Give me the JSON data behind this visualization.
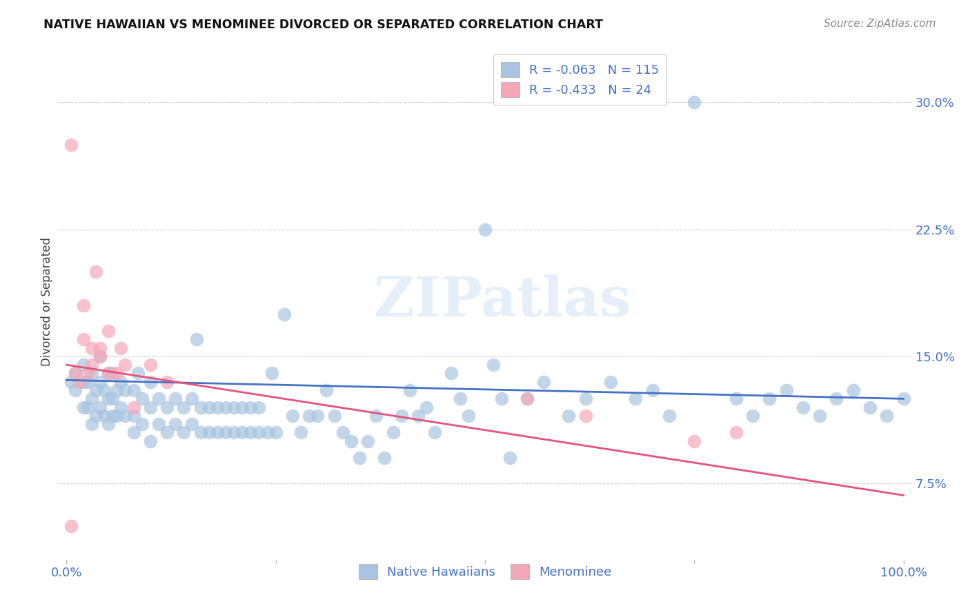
{
  "title": "NATIVE HAWAIIAN VS MENOMINEE DIVORCED OR SEPARATED CORRELATION CHART",
  "source": "Source: ZipAtlas.com",
  "ylabel": "Divorced or Separated",
  "ytick_labels": [
    "7.5%",
    "15.0%",
    "22.5%",
    "30.0%"
  ],
  "ytick_values": [
    0.075,
    0.15,
    0.225,
    0.3
  ],
  "ylim": [
    0.03,
    0.335
  ],
  "xlim": [
    -0.01,
    1.01
  ],
  "legend_r1": "-0.063",
  "legend_n1": "115",
  "legend_r2": "-0.433",
  "legend_n2": "24",
  "color_blue": "#a8c4e0",
  "color_pink": "#f4a7b9",
  "line_color_blue": "#4472c4",
  "line_color_pink": "#e8517a",
  "watermark": "ZIPatlas",
  "nh_x": [
    0.005,
    0.01,
    0.01,
    0.02,
    0.02,
    0.02,
    0.025,
    0.025,
    0.03,
    0.03,
    0.03,
    0.035,
    0.035,
    0.04,
    0.04,
    0.04,
    0.045,
    0.045,
    0.05,
    0.05,
    0.05,
    0.055,
    0.055,
    0.055,
    0.06,
    0.06,
    0.065,
    0.065,
    0.07,
    0.07,
    0.08,
    0.08,
    0.08,
    0.085,
    0.09,
    0.09,
    0.1,
    0.1,
    0.1,
    0.11,
    0.11,
    0.12,
    0.12,
    0.13,
    0.13,
    0.14,
    0.14,
    0.15,
    0.15,
    0.155,
    0.16,
    0.16,
    0.17,
    0.17,
    0.18,
    0.18,
    0.19,
    0.19,
    0.2,
    0.2,
    0.21,
    0.21,
    0.22,
    0.22,
    0.23,
    0.23,
    0.24,
    0.245,
    0.25,
    0.26,
    0.27,
    0.28,
    0.29,
    0.3,
    0.31,
    0.32,
    0.33,
    0.34,
    0.35,
    0.36,
    0.37,
    0.38,
    0.39,
    0.4,
    0.41,
    0.42,
    0.43,
    0.44,
    0.46,
    0.47,
    0.48,
    0.5,
    0.51,
    0.52,
    0.53,
    0.55,
    0.57,
    0.6,
    0.62,
    0.65,
    0.68,
    0.7,
    0.72,
    0.75,
    0.8,
    0.82,
    0.84,
    0.86,
    0.88,
    0.9,
    0.92,
    0.94,
    0.96,
    0.98,
    1.0
  ],
  "nh_y": [
    0.135,
    0.13,
    0.14,
    0.12,
    0.135,
    0.145,
    0.12,
    0.135,
    0.11,
    0.125,
    0.14,
    0.115,
    0.13,
    0.12,
    0.135,
    0.15,
    0.115,
    0.13,
    0.11,
    0.125,
    0.14,
    0.115,
    0.125,
    0.14,
    0.115,
    0.13,
    0.12,
    0.135,
    0.115,
    0.13,
    0.105,
    0.115,
    0.13,
    0.14,
    0.11,
    0.125,
    0.1,
    0.12,
    0.135,
    0.11,
    0.125,
    0.105,
    0.12,
    0.11,
    0.125,
    0.105,
    0.12,
    0.11,
    0.125,
    0.16,
    0.105,
    0.12,
    0.105,
    0.12,
    0.105,
    0.12,
    0.105,
    0.12,
    0.105,
    0.12,
    0.105,
    0.12,
    0.105,
    0.12,
    0.105,
    0.12,
    0.105,
    0.14,
    0.105,
    0.175,
    0.115,
    0.105,
    0.115,
    0.115,
    0.13,
    0.115,
    0.105,
    0.1,
    0.09,
    0.1,
    0.115,
    0.09,
    0.105,
    0.115,
    0.13,
    0.115,
    0.12,
    0.105,
    0.14,
    0.125,
    0.115,
    0.225,
    0.145,
    0.125,
    0.09,
    0.125,
    0.135,
    0.115,
    0.125,
    0.135,
    0.125,
    0.13,
    0.115,
    0.3,
    0.125,
    0.115,
    0.125,
    0.13,
    0.12,
    0.115,
    0.125,
    0.13,
    0.12,
    0.115,
    0.125
  ],
  "men_x": [
    0.005,
    0.005,
    0.01,
    0.015,
    0.02,
    0.02,
    0.025,
    0.03,
    0.03,
    0.035,
    0.04,
    0.04,
    0.05,
    0.05,
    0.06,
    0.065,
    0.07,
    0.08,
    0.1,
    0.12,
    0.55,
    0.62,
    0.75,
    0.8
  ],
  "men_y": [
    0.275,
    0.05,
    0.14,
    0.135,
    0.16,
    0.18,
    0.14,
    0.145,
    0.155,
    0.2,
    0.15,
    0.155,
    0.14,
    0.165,
    0.14,
    0.155,
    0.145,
    0.12,
    0.145,
    0.135,
    0.125,
    0.115,
    0.1,
    0.105
  ],
  "nh_line_x0": 0.0,
  "nh_line_x1": 1.0,
  "nh_line_y0": 0.136,
  "nh_line_y1": 0.125,
  "men_line_x0": 0.0,
  "men_line_x1": 1.0,
  "men_line_y0": 0.145,
  "men_line_y1": 0.068
}
